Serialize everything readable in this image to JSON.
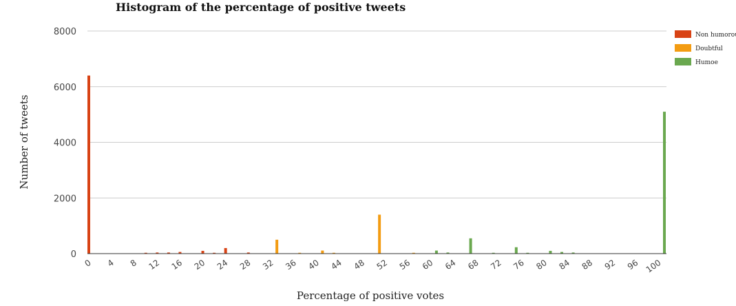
{
  "chart_data": {
    "type": "bar",
    "title": "Histogram of the percentage of positive tweets",
    "xlabel": "Percentage of positive votes",
    "ylabel": "Number of tweets",
    "ylim": [
      0,
      8000
    ],
    "xlim": [
      0,
      101
    ],
    "yticks": [
      "0",
      "2000",
      "4000",
      "6000",
      "8000"
    ],
    "xticks": [
      "0",
      "4",
      "8",
      "12",
      "16",
      "20",
      "24",
      "28",
      "32",
      "36",
      "40",
      "44",
      "48",
      "52",
      "56",
      "60",
      "64",
      "68",
      "72",
      "76",
      "80",
      "84",
      "88",
      "92",
      "96",
      "100"
    ],
    "grid": true,
    "legend_position": "top-right",
    "series": [
      {
        "name": "Non humorous",
        "color": "#d84315",
        "points": [
          {
            "x": 0,
            "y": 6400
          },
          {
            "x": 10,
            "y": 30
          },
          {
            "x": 12,
            "y": 40
          },
          {
            "x": 14,
            "y": 40
          },
          {
            "x": 16,
            "y": 60
          },
          {
            "x": 20,
            "y": 100
          },
          {
            "x": 22,
            "y": 30
          },
          {
            "x": 24,
            "y": 200
          },
          {
            "x": 28,
            "y": 40
          }
        ]
      },
      {
        "name": "Doubtful",
        "color": "#f39c12",
        "points": [
          {
            "x": 33,
            "y": 500
          },
          {
            "x": 37,
            "y": 30
          },
          {
            "x": 41,
            "y": 110
          },
          {
            "x": 43,
            "y": 30
          },
          {
            "x": 51,
            "y": 1400
          },
          {
            "x": 57,
            "y": 30
          }
        ]
      },
      {
        "name": "Humoe",
        "color": "#6aa84f",
        "points": [
          {
            "x": 61,
            "y": 110
          },
          {
            "x": 63,
            "y": 40
          },
          {
            "x": 67,
            "y": 550
          },
          {
            "x": 71,
            "y": 30
          },
          {
            "x": 75,
            "y": 230
          },
          {
            "x": 77,
            "y": 30
          },
          {
            "x": 81,
            "y": 100
          },
          {
            "x": 83,
            "y": 60
          },
          {
            "x": 85,
            "y": 40
          },
          {
            "x": 101,
            "y": 5100
          }
        ]
      }
    ]
  }
}
